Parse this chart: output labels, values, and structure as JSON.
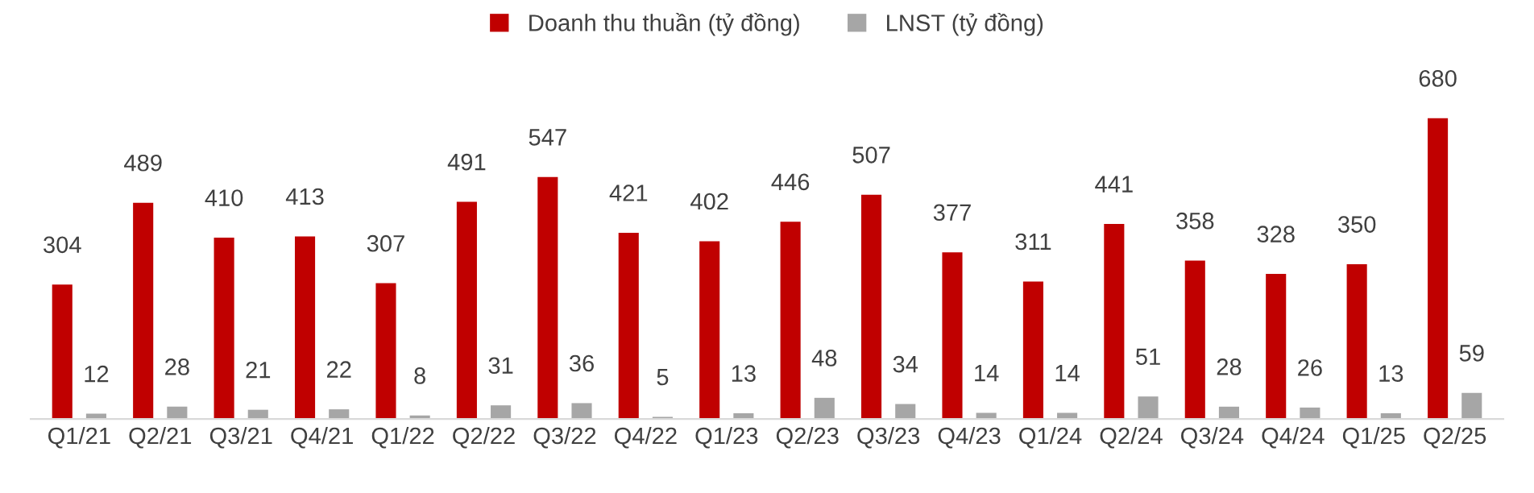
{
  "chart_data": {
    "type": "bar",
    "categories": [
      "Q1/21",
      "Q2/21",
      "Q3/21",
      "Q4/21",
      "Q1/22",
      "Q2/22",
      "Q3/22",
      "Q4/22",
      "Q1/23",
      "Q2/23",
      "Q3/23",
      "Q4/23",
      "Q1/24",
      "Q2/24",
      "Q3/24",
      "Q4/24",
      "Q1/25",
      "Q2/25"
    ],
    "series": [
      {
        "name": "Doanh thu thuần (tỷ đồng)",
        "color": "#c00000",
        "values": [
          304,
          489,
          410,
          413,
          307,
          491,
          547,
          421,
          402,
          446,
          507,
          377,
          311,
          441,
          358,
          328,
          350,
          680
        ]
      },
      {
        "name": "LNST (tỷ đồng)",
        "color": "#a6a6a6",
        "values": [
          12,
          28,
          21,
          22,
          8,
          31,
          36,
          5,
          13,
          48,
          34,
          14,
          14,
          51,
          28,
          26,
          13,
          59
        ]
      }
    ],
    "data_labels": true,
    "legend": "top",
    "grid": false
  }
}
